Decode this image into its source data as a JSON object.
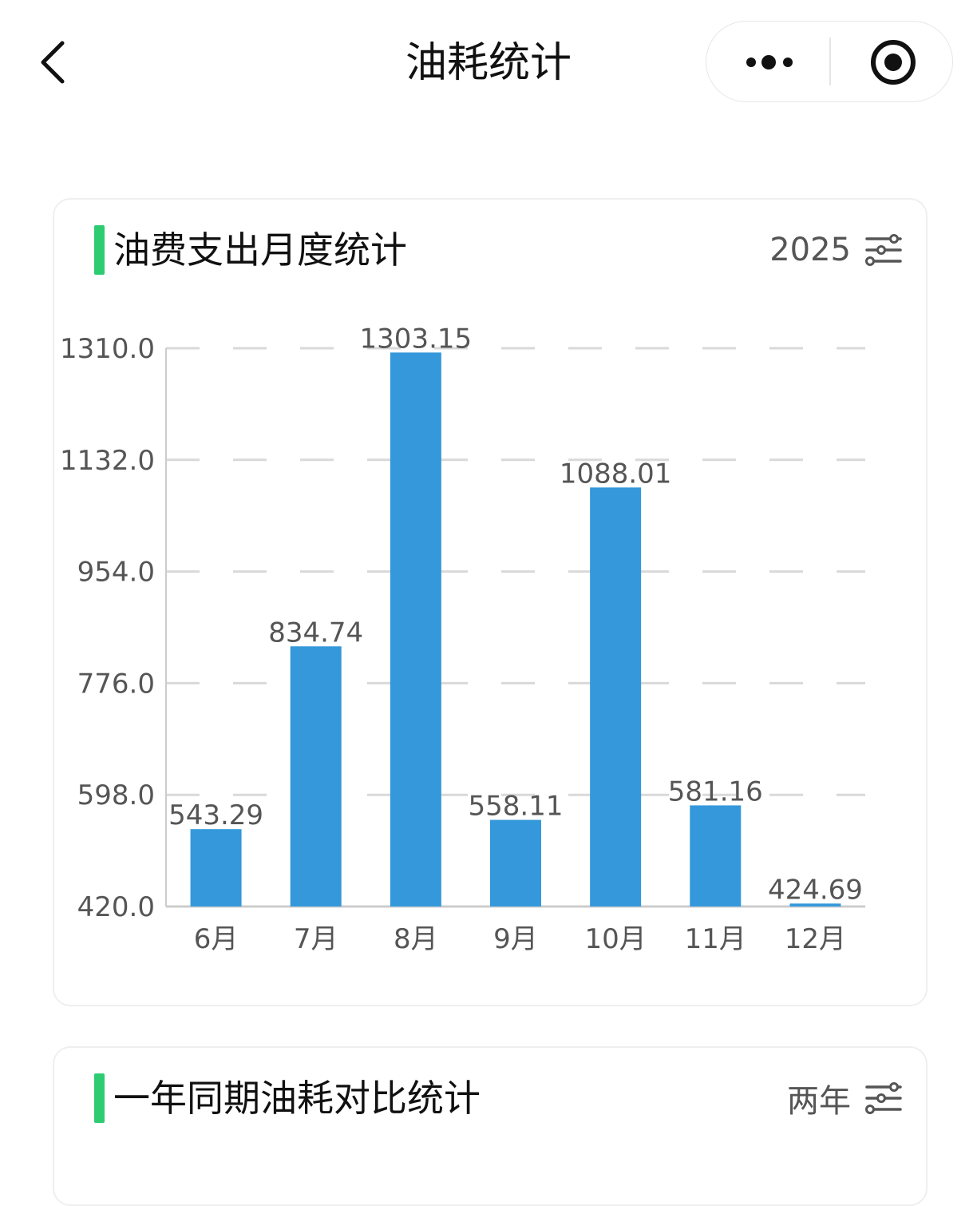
{
  "nav": {
    "title": "油耗统计",
    "back_icon": "chevron-left-icon",
    "more_icon": "more-dots-icon",
    "close_icon": "target-circle-icon"
  },
  "card1": {
    "title": "油费支出月度统计",
    "filter_label": "2025",
    "filter_icon": "sliders-icon",
    "accent_color": "#2ecc71"
  },
  "card2": {
    "title": "一年同期油耗对比统计",
    "filter_label": "两年",
    "filter_icon": "sliders-icon",
    "accent_color": "#2ecc71"
  },
  "chart_data": {
    "type": "bar",
    "categories": [
      "6月",
      "7月",
      "8月",
      "9月",
      "10月",
      "11月",
      "12月"
    ],
    "values": [
      543.29,
      834.74,
      1303.15,
      558.11,
      1088.01,
      581.16,
      424.69
    ],
    "value_labels": [
      "543.29",
      "834.74",
      "1303.15",
      "558.11",
      "1088.01",
      "581.16",
      "424.69"
    ],
    "yticks": [
      "420.0",
      "598.0",
      "776.0",
      "954.0",
      "1132.0",
      "1310.0"
    ],
    "ylim": [
      420,
      1310
    ],
    "title": "",
    "xlabel": "",
    "ylabel": "",
    "bar_color": "#3498db",
    "grid": true,
    "legend": "none"
  }
}
